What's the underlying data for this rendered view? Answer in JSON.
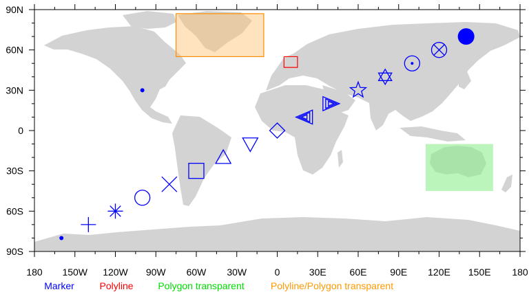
{
  "map": {
    "projection": "cylindrical equidistant",
    "lon_range": [
      -180,
      180
    ],
    "lat_range": [
      -90,
      90
    ],
    "land_color": "#d3d3d3",
    "ocean_color": "#ffffff",
    "lat_labels": [
      "90N",
      "60N",
      "30N",
      "0",
      "30S",
      "60S",
      "90S"
    ],
    "lon_labels": [
      "180",
      "150W",
      "120W",
      "90W",
      "60W",
      "30W",
      "0",
      "30E",
      "60E",
      "90E",
      "120E",
      "150E",
      "180"
    ]
  },
  "markers": {
    "color": "#0000ff",
    "items": [
      {
        "shape": "dot",
        "lon": -160,
        "lat": -80
      },
      {
        "shape": "plus",
        "lon": -140,
        "lat": -70
      },
      {
        "shape": "asterisk",
        "lon": -120,
        "lat": -60
      },
      {
        "shape": "circle",
        "lon": -100,
        "lat": -50
      },
      {
        "shape": "x",
        "lon": -80,
        "lat": -40
      },
      {
        "shape": "square",
        "lon": -60,
        "lat": -30
      },
      {
        "shape": "triangle-up",
        "lon": -40,
        "lat": -20
      },
      {
        "shape": "triangle-down",
        "lon": -20,
        "lat": -10
      },
      {
        "shape": "diamond",
        "lon": 0,
        "lat": 0
      },
      {
        "shape": "triple-arrow-left",
        "lon": 20,
        "lat": 10
      },
      {
        "shape": "triple-arrow-right",
        "lon": 40,
        "lat": 20
      },
      {
        "shape": "star",
        "lon": 60,
        "lat": 30
      },
      {
        "shape": "star-of-david",
        "lon": 80,
        "lat": 40
      },
      {
        "shape": "circle-dot",
        "lon": 100,
        "lat": 50
      },
      {
        "shape": "circle-x",
        "lon": 120,
        "lat": 60
      },
      {
        "shape": "filled-circle",
        "lon": 140,
        "lat": 70
      },
      {
        "shape": "dot",
        "lon": -100,
        "lat": 30
      }
    ]
  },
  "polyline": {
    "color": "#ff0000",
    "lon": [
      5,
      15
    ],
    "lat": [
      47,
      55
    ]
  },
  "polygon_transparent": {
    "fill": "#90ee90",
    "opacity": 0.6,
    "lon": [
      110,
      160
    ],
    "lat": [
      -45,
      -10
    ]
  },
  "polyline_polygon_transparent": {
    "fill": "#ffc26f",
    "edge": "#ff8c00",
    "opacity": 0.45,
    "lon": [
      -75,
      -10
    ],
    "lat": [
      55,
      87
    ]
  },
  "legend": [
    {
      "label": "Marker",
      "color": "#0000ff"
    },
    {
      "label": "Polyline",
      "color": "#ff0000"
    },
    {
      "label": "Polygon transparent",
      "color": "#00dd00"
    },
    {
      "label": "Polyline/Polygon transparent",
      "color": "#ff9900"
    }
  ]
}
